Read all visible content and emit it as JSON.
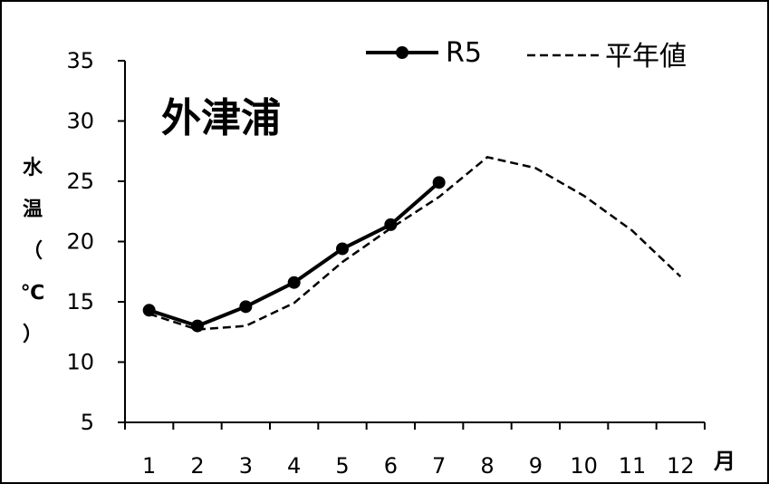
{
  "chart_data": {
    "type": "line",
    "title": "外津浦",
    "ylabel": "水温（℃）",
    "x_unit": "月",
    "categories": [
      "1",
      "2",
      "3",
      "4",
      "5",
      "6",
      "7",
      "8",
      "9",
      "10",
      "11",
      "12"
    ],
    "ylim": [
      5,
      35
    ],
    "yticks": [
      5,
      10,
      15,
      20,
      25,
      30,
      35
    ],
    "grid": false,
    "legend_position": "top-right",
    "series": [
      {
        "name": "R5",
        "style": "solid-markers",
        "color": "#000000",
        "values": [
          14.3,
          13.0,
          14.6,
          16.6,
          19.4,
          21.4,
          24.9,
          null,
          null,
          null,
          null,
          null
        ]
      },
      {
        "name": "平年値",
        "style": "dashed",
        "color": "#000000",
        "values": [
          14.0,
          12.7,
          13.0,
          14.9,
          18.3,
          21.1,
          23.7,
          27.0,
          26.1,
          23.8,
          20.9,
          17.1
        ]
      }
    ]
  }
}
